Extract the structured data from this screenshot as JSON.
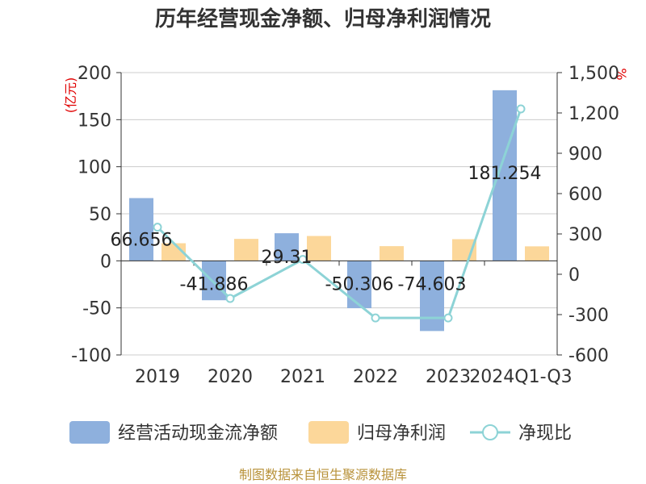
{
  "chart_data": {
    "type": "bar",
    "title": "历年经营现金净额、归母净利润情况",
    "categories": [
      "2019",
      "2020",
      "2021",
      "2022",
      "2023",
      "2024Q1-Q3"
    ],
    "left_axis": {
      "unit": "(亿元)",
      "ticks": [
        "200",
        "150",
        "100",
        "50",
        "0",
        "-50",
        "-100"
      ],
      "range": [
        -100,
        200
      ]
    },
    "right_axis": {
      "unit": "%",
      "ticks": [
        "1,500",
        "1,200",
        "900",
        "600",
        "300",
        "0",
        "-300",
        "-600"
      ],
      "range": [
        -600,
        1500
      ]
    },
    "series": [
      {
        "name": "经营活动现金流净额",
        "kind": "bar",
        "axis": "left",
        "values": [
          66.656,
          -41.886,
          29.31,
          -50.306,
          -74.603,
          181.254
        ],
        "labels": [
          "66.656",
          "-41.886",
          "29.31",
          "-50.306",
          "-74.603",
          "181.254"
        ]
      },
      {
        "name": "归母净利润",
        "kind": "bar",
        "axis": "left",
        "values": [
          18.7,
          23.3,
          26.4,
          15.6,
          23.0,
          15.4
        ]
      },
      {
        "name": "净现比",
        "kind": "line",
        "axis": "right",
        "values": [
          350,
          -180,
          110,
          -325,
          -325,
          1230
        ]
      }
    ],
    "colors": {
      "cashflow": "#8eb0dd",
      "profit": "#fcd79a",
      "ratio": "#8dd3d6",
      "grid": "#cccccc",
      "axis": "#333333"
    },
    "grid": true,
    "legend_position": "bottom"
  },
  "source": "制图数据来自恒生聚源数据库"
}
